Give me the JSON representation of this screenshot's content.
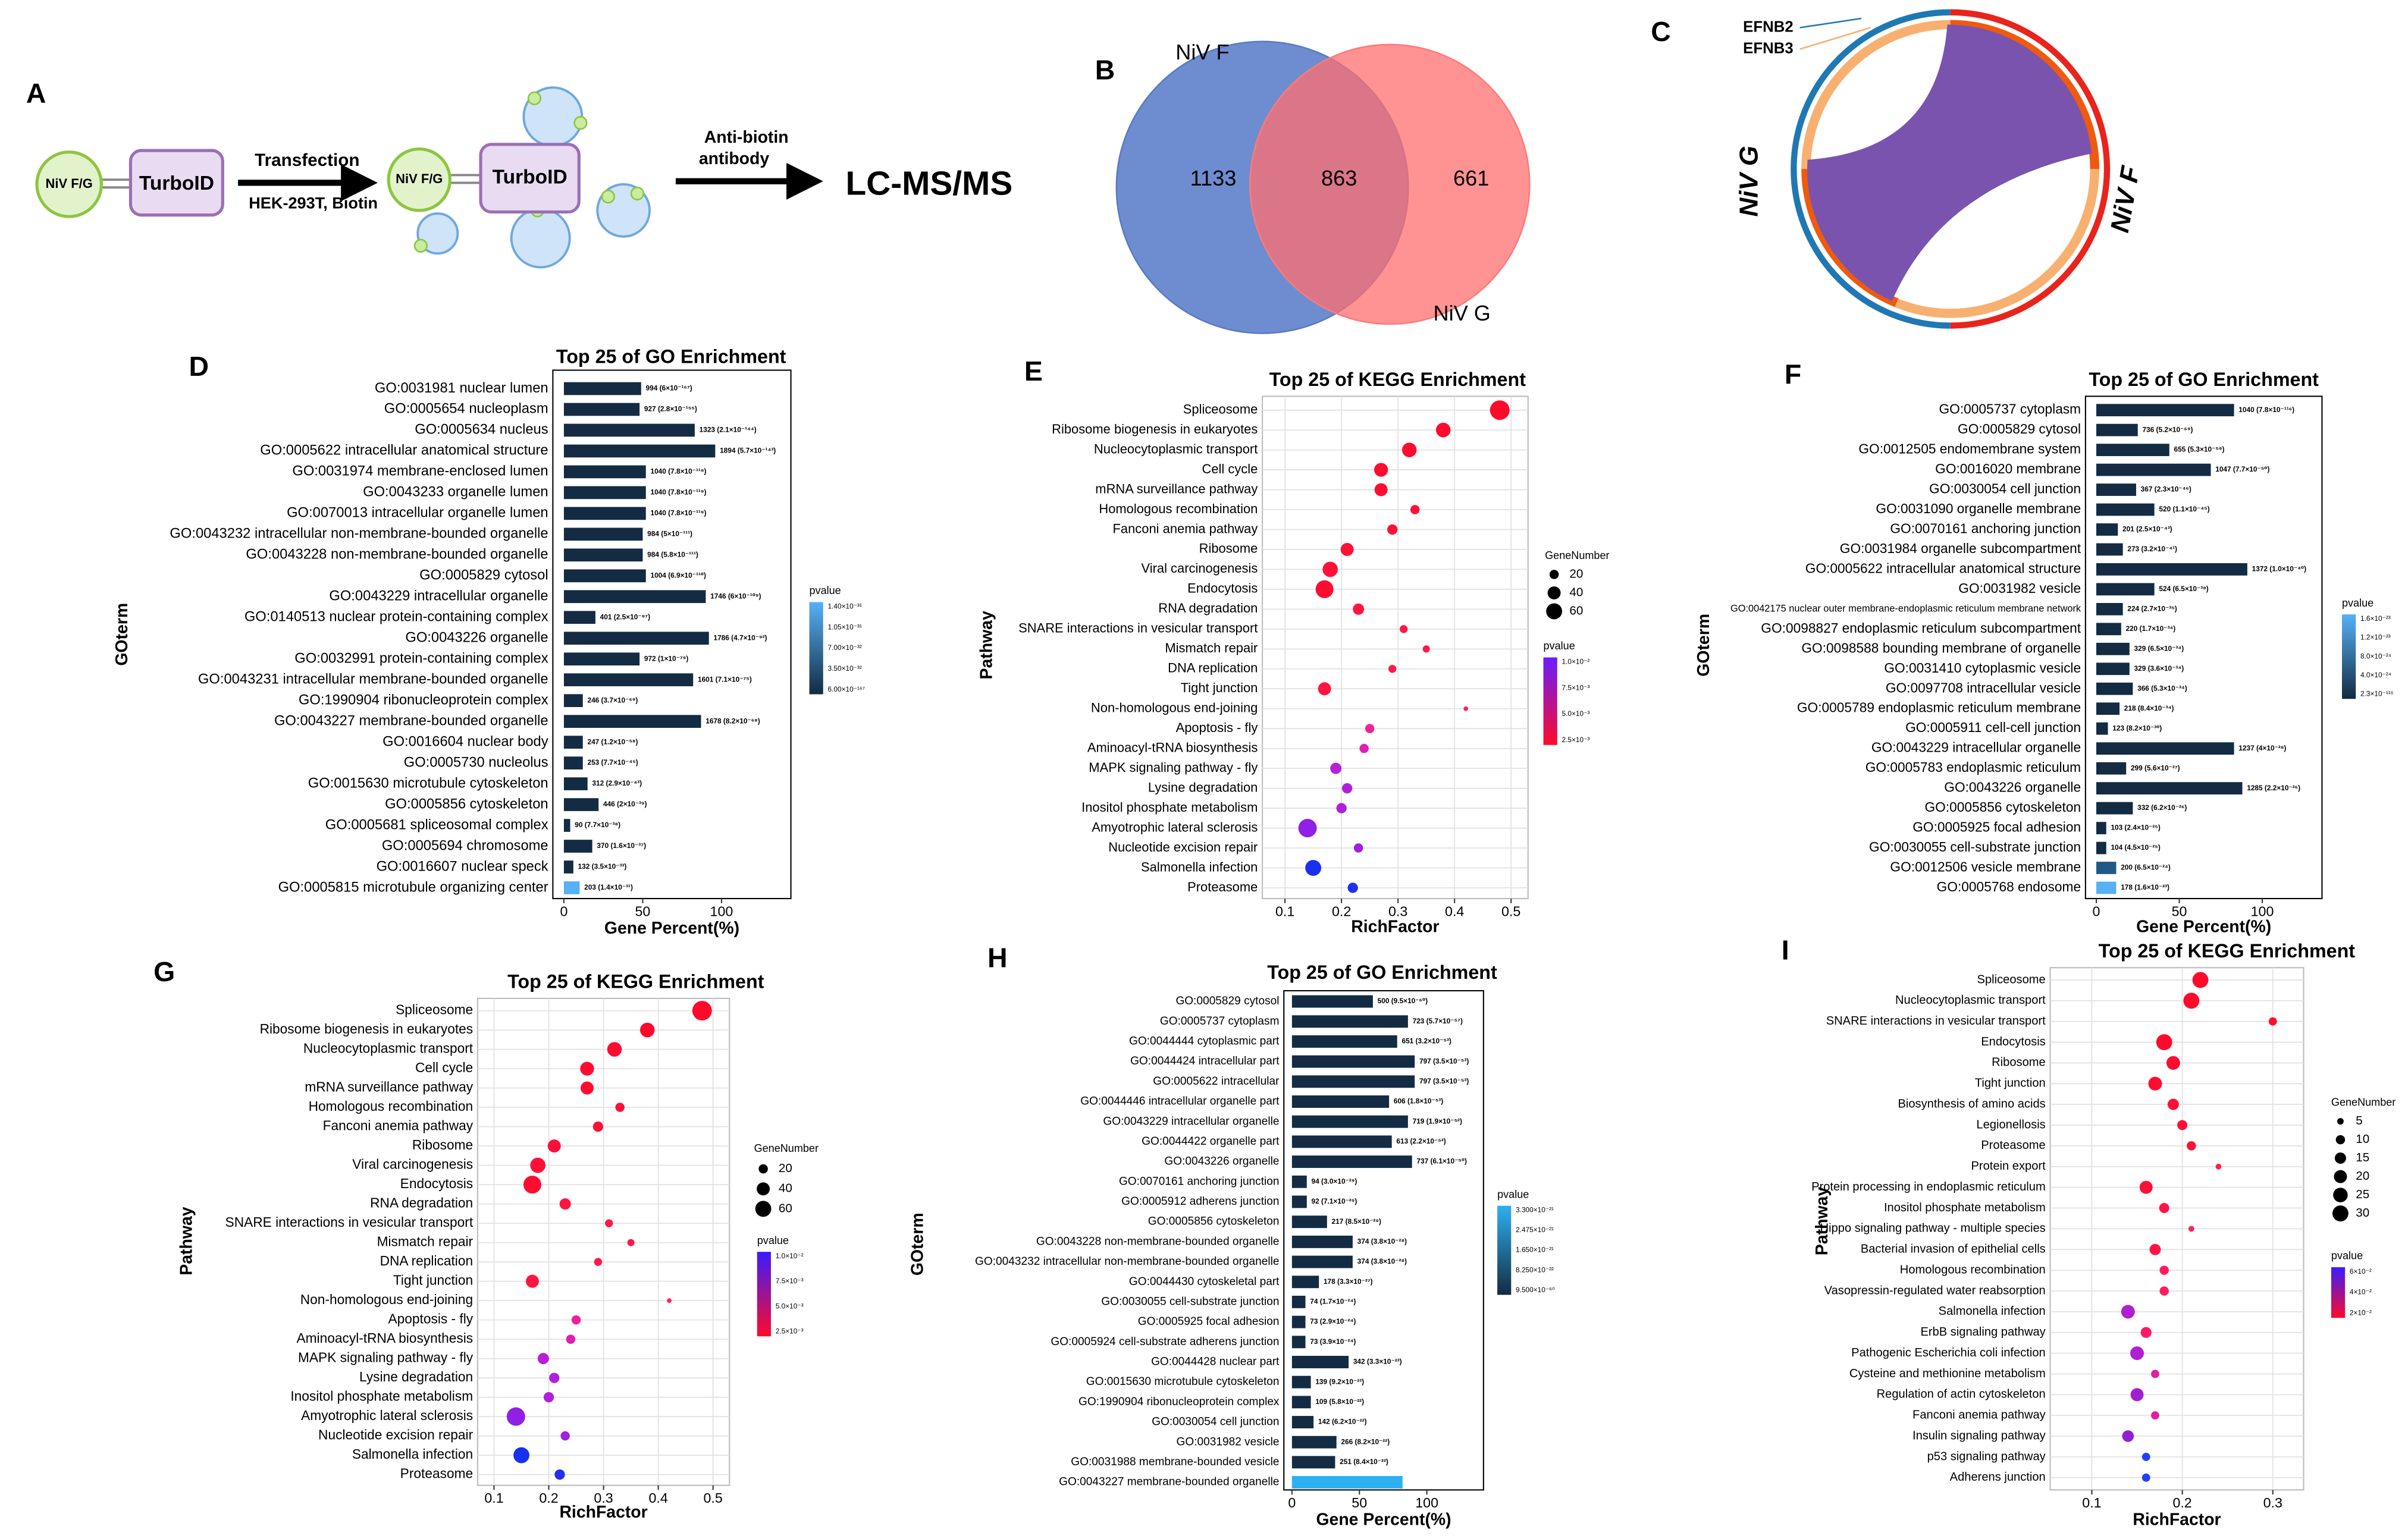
{
  "workflow": {
    "panel": "A",
    "bait1": "NiV F/G",
    "tag1": "TurboID",
    "step1": "Transfection",
    "step1_detail": "HEK-293T, Biotin",
    "bait2": "NiV F/G",
    "tag2": "TurboID",
    "step2_line1": "Anti-biotin",
    "step2_line2": "antibody",
    "result": "LC-MS/MS"
  },
  "venn": {
    "panel": "B",
    "set1": "NiV F",
    "set2": "NiV G",
    "only1": "1133",
    "both": "863",
    "only2": "661"
  },
  "chord": {
    "panel": "C",
    "label1": "EFNB2",
    "label2": "EFNB3",
    "left": "NiV G",
    "right": "NiV F"
  },
  "chart_data": [
    {
      "type": "bar",
      "panel": "D",
      "title": "Top 25 of GO Enrichment",
      "xlabel": "Gene Percent(%)",
      "ylabel": "GOterm",
      "categories": [
        "GO:0031981 nuclear lumen",
        "GO:0005654 nucleoplasm",
        "GO:0005634 nucleus",
        "GO:0005622 intracellular anatomical structure",
        "GO:0031974 membrane-enclosed lumen",
        "GO:0043233 organelle lumen",
        "GO:0070013 intracellular organelle lumen",
        "GO:0043232 intracellular non-membrane-bounded organelle",
        "GO:0043228 non-membrane-bounded organelle",
        "GO:0005829 cytosol",
        "GO:0043229 intracellular organelle",
        "GO:0140513 nuclear protein-containing complex",
        "GO:0043226 organelle",
        "GO:0032991 protein-containing complex",
        "GO:0043231 intracellular membrane-bounded organelle",
        "GO:1990904 ribonucleoprotein complex",
        "GO:0043227 membrane-bounded organelle",
        "GO:0016604 nuclear body",
        "GO:0005730 nucleolus",
        "GO:0015630 microtubule cytoskeleton",
        "GO:0005856 cytoskeleton",
        "GO:0005681 spliceosomal complex",
        "GO:0005694 chromosome",
        "GO:0016607 nuclear speck",
        "GO:0005815 microtubule organizing center"
      ],
      "values": [
        49,
        48,
        83,
        96,
        52,
        52,
        52,
        50,
        50,
        52,
        90,
        20,
        92,
        48,
        82,
        12,
        87,
        12,
        12,
        15,
        22,
        4,
        18,
        6,
        10
      ],
      "bar_labels": [
        "994 (6×10⁻¹⁶⁷)",
        "927 (2.8×10⁻¹⁵⁵)",
        "1323 (2.1×10⁻¹⁴⁴)",
        "1894 (5.7×10⁻¹⁴³)",
        "1040 (7.8×10⁻¹¹⁹)",
        "1040 (7.8×10⁻¹¹⁹)",
        "1040 (7.8×10⁻¹¹⁹)",
        "984 (5×10⁻¹¹¹)",
        "984 (5.8×10⁻¹¹¹)",
        "1004 (6.9×10⁻¹¹⁰)",
        "1746 (6×10⁻¹⁰⁹)",
        "401 (2.5×10⁻⁹⁷)",
        "1786 (4.7×10⁻⁹²)",
        "972 (1×10⁻⁷⁹)",
        "1601 (7.1×10⁻⁷⁵)",
        "246 (3.7×10⁻⁶⁹)",
        "1678 (8.2×10⁻⁶⁸)",
        "247 (1.2×10⁻⁵⁸)",
        "253 (7.7×10⁻⁴⁵)",
        "312 (2.9×10⁻⁴³)",
        "446 (2×10⁻³⁹)",
        "90 (7.7×10⁻³⁸)",
        "370 (1.6×10⁻³⁷)",
        "132 (3.5×10⁻³³)",
        "203 (1.4×10⁻³¹)"
      ],
      "colors": [
        "#132b43",
        "#132b43",
        "#132b43",
        "#132b43",
        "#132b43",
        "#132b43",
        "#132b43",
        "#132b43",
        "#132b43",
        "#132b43",
        "#132b43",
        "#132b43",
        "#132b43",
        "#132b43",
        "#132b43",
        "#132b43",
        "#132b43",
        "#132b43",
        "#132b43",
        "#132b43",
        "#132b43",
        "#132b43",
        "#132b43",
        "#132b43",
        "#56b1f7"
      ],
      "xlim": [
        -7,
        144
      ],
      "xticks": [
        0,
        50,
        100
      ],
      "colorbar": {
        "title": "pvalue",
        "labels": [
          "1.40×10⁻³¹",
          "1.05×10⁻³¹",
          "7.00×10⁻³²",
          "3.50×10⁻³²",
          "6.00×10⁻¹⁶⁷"
        ],
        "colors": [
          "#56b1f7",
          "#132b43"
        ]
      }
    },
    {
      "type": "bubble",
      "panel": "E",
      "title": "Top 25 of KEGG Enrichment",
      "xlabel": "RichFactor",
      "ylabel": "Pathway",
      "grid": true,
      "categories": [
        "Spliceosome",
        "Ribosome biogenesis in eukaryotes",
        "Nucleocytoplasmic transport",
        "Cell cycle",
        "mRNA surveillance pathway",
        "Homologous recombination",
        "Fanconi anemia pathway",
        "Ribosome",
        "Viral carcinogenesis",
        "Endocytosis",
        "RNA degradation",
        "SNARE interactions in vesicular transport",
        "Mismatch repair",
        "DNA replication",
        "Tight junction",
        "Non-homologous end-joining",
        "Apoptosis - fly",
        "Aminoacyl-tRNA biosynthesis",
        "MAPK signaling pathway - fly",
        "Lysine degradation",
        "Inositol phosphate metabolism",
        "Amyotrophic lateral sclerosis",
        "Nucleotide excision repair",
        "Salmonella infection",
        "Proteasome"
      ],
      "x": [
        0.48,
        0.38,
        0.32,
        0.27,
        0.27,
        0.33,
        0.29,
        0.21,
        0.18,
        0.17,
        0.23,
        0.31,
        0.35,
        0.29,
        0.17,
        0.42,
        0.25,
        0.24,
        0.19,
        0.21,
        0.2,
        0.14,
        0.23,
        0.15,
        0.22
      ],
      "sizes": [
        90,
        50,
        50,
        45,
        40,
        20,
        25,
        40,
        55,
        75,
        30,
        15,
        12,
        15,
        40,
        5,
        20,
        20,
        30,
        25,
        25,
        80,
        20,
        60,
        25
      ],
      "colors": [
        "#ff0a2a",
        "#ff0a2c",
        "#ff0c30",
        "#ff0c30",
        "#ff0c30",
        "#ff1038",
        "#ff1038",
        "#ff1038",
        "#ff1038",
        "#ff0c30",
        "#ff1640",
        "#ff1848",
        "#ff1848",
        "#ff1848",
        "#ff1640",
        "#ff2060",
        "#f0209a",
        "#e020b0",
        "#b820d8",
        "#b020dc",
        "#b020dc",
        "#9020e4",
        "#a020e0",
        "#1830f0",
        "#2030f0"
      ],
      "xlim": [
        0.06,
        0.53
      ],
      "xticks": [
        0.1,
        0.2,
        0.3,
        0.4,
        0.5
      ],
      "size_legend": {
        "title": "GeneNumber",
        "values": [
          20,
          40,
          60
        ]
      },
      "colorbar": {
        "title": "pvalue",
        "labels": [
          "1.0×10⁻²",
          "7.5×10⁻³",
          "5.0×10⁻³",
          "2.5×10⁻³"
        ],
        "colors": [
          "#6a1cff",
          "#ff0a2a"
        ]
      }
    },
    {
      "type": "bar",
      "panel": "F",
      "title": "Top 25 of GO Enrichment",
      "xlabel": "Gene Percent(%)",
      "ylabel": "GOterm",
      "categories": [
        "GO:0005737 cytoplasm",
        "GO:0005829 cytosol",
        "GO:0012505 endomembrane system",
        "GO:0016020 membrane",
        "GO:0030054 cell junction",
        "GO:0031090 organelle membrane",
        "GO:0070161 anchoring junction",
        "GO:0031984 organelle subcompartment",
        "GO:0005622 intracellular anatomical structure",
        "GO:0031982 vesicle",
        "GO:0042175 nuclear outer membrane-endoplasmic reticulum membrane network",
        "GO:0098827 endoplasmic reticulum subcompartment",
        "GO:0098588 bounding membrane of organelle",
        "GO:0031410 cytoplasmic vesicle",
        "GO:0097708 intracellular vesicle",
        "GO:0005789 endoplasmic reticulum membrane",
        "GO:0005911 cell-cell junction",
        "GO:0043229 intracellular organelle",
        "GO:0005783 endoplasmic reticulum",
        "GO:0043226 organelle",
        "GO:0005856 cytoskeleton",
        "GO:0005925 focal adhesion",
        "GO:0030055 cell-substrate junction",
        "GO:0012506 vesicle membrane",
        "GO:0005768 endosome"
      ],
      "values": [
        83,
        25,
        44,
        69,
        24,
        35,
        13,
        16,
        91,
        35,
        16,
        15,
        20,
        20,
        22,
        14,
        7,
        83,
        18,
        88,
        22,
        6,
        6,
        12,
        12
      ],
      "bar_labels": [
        "1040 (7.8×10⁻¹¹⁶)",
        "736 (5.2×10⁻⁶⁹)",
        "655 (5.3×10⁻⁵⁹)",
        "1047 (7.7×10⁻⁵⁰)",
        "367 (2.3×10⁻⁴⁶)",
        "520 (1.1×10⁻⁴⁵)",
        "201 (2.5×10⁻⁴³)",
        "273 (3.2×10⁻⁴¹)",
        "1372 (1.0×10⁻⁴⁰)",
        "524 (6.5×10⁻³⁸)",
        "224 (2.7×10⁻³⁵)",
        "220 (1.7×10⁻³⁴)",
        "329 (6.5×10⁻³⁴)",
        "329 (3.6×10⁻³⁴)",
        "366 (5.3×10⁻³⁴)",
        "218 (8.4×10⁻³⁴)",
        "123 (8.2×10⁻³⁰)",
        "1237 (4×10⁻²⁸)",
        "299 (5.6×10⁻²⁷)",
        "1285 (2.2×10⁻²⁶)",
        "332 (6.2×10⁻²⁶)",
        "103 (2.4×10⁻²⁵)",
        "104 (4.5×10⁻²⁵)",
        "200 (6.5×10⁻²⁴)",
        "178 (1.6×10⁻²³)"
      ],
      "colors": [
        "#132b43",
        "#132b43",
        "#132b43",
        "#132b43",
        "#132b43",
        "#132b43",
        "#132b43",
        "#132b43",
        "#132b43",
        "#132b43",
        "#132b43",
        "#132b43",
        "#132b43",
        "#132b43",
        "#132b43",
        "#132b43",
        "#132b43",
        "#132b43",
        "#132b43",
        "#132b43",
        "#132b43",
        "#132b43",
        "#132b43",
        "#1f5a86",
        "#56b1f7"
      ],
      "xlim": [
        -6.5,
        136
      ],
      "xticks": [
        0,
        50,
        100
      ],
      "colorbar": {
        "title": "pvalue",
        "labels": [
          "1.6×10⁻²³",
          "1.2×10⁻²³",
          "8.0×10⁻²⁴",
          "4.0×10⁻²⁴",
          "2.3×10⁻¹¹⁶"
        ],
        "colors": [
          "#56b1f7",
          "#132b43"
        ]
      }
    },
    {
      "type": "bubble",
      "panel": "G",
      "title": "Top 25 of KEGG Enrichment",
      "xlabel": "RichFactor",
      "ylabel": "Pathway",
      "grid": true,
      "categories": [
        "Spliceosome",
        "Ribosome biogenesis in eukaryotes",
        "Nucleocytoplasmic transport",
        "Cell cycle",
        "mRNA surveillance pathway",
        "Homologous recombination",
        "Fanconi anemia pathway",
        "Ribosome",
        "Viral carcinogenesis",
        "Endocytosis",
        "RNA degradation",
        "SNARE interactions in vesicular transport",
        "Mismatch repair",
        "DNA replication",
        "Tight junction",
        "Non-homologous end-joining",
        "Apoptosis - fly",
        "Aminoacyl-tRNA biosynthesis",
        "MAPK signaling pathway - fly",
        "Lysine degradation",
        "Inositol phosphate metabolism",
        "Amyotrophic lateral sclerosis",
        "Nucleotide excision repair",
        "Salmonella infection",
        "Proteasome"
      ],
      "x": [
        0.48,
        0.38,
        0.32,
        0.27,
        0.27,
        0.33,
        0.29,
        0.21,
        0.18,
        0.17,
        0.23,
        0.31,
        0.35,
        0.29,
        0.17,
        0.42,
        0.25,
        0.24,
        0.19,
        0.21,
        0.2,
        0.14,
        0.23,
        0.15,
        0.22
      ],
      "sizes": [
        90,
        50,
        50,
        45,
        40,
        20,
        25,
        40,
        55,
        75,
        30,
        15,
        12,
        15,
        40,
        5,
        20,
        20,
        30,
        25,
        25,
        80,
        20,
        60,
        25
      ],
      "colors": [
        "#ff0a2a",
        "#ff0a2c",
        "#ff0c30",
        "#ff0c30",
        "#ff0c30",
        "#ff1038",
        "#ff1038",
        "#ff1038",
        "#ff1038",
        "#ff0c30",
        "#ff1640",
        "#ff1848",
        "#ff1848",
        "#ff1848",
        "#ff1640",
        "#ff2060",
        "#f0209a",
        "#e020b0",
        "#b820d8",
        "#b020dc",
        "#b020dc",
        "#9020e4",
        "#a020e0",
        "#1830f0",
        "#2030f0"
      ],
      "xlim": [
        0.07,
        0.53
      ],
      "xticks": [
        0.1,
        0.2,
        0.3,
        0.4,
        0.5
      ],
      "size_legend": {
        "title": "GeneNumber",
        "values": [
          20,
          40,
          60
        ]
      },
      "colorbar": {
        "title": "pvalue",
        "labels": [
          "1.0×10⁻²",
          "7.5×10⁻³",
          "5.0×10⁻³",
          "2.5×10⁻³"
        ],
        "colors": [
          "#3a1cff",
          "#ff0a2a"
        ]
      }
    },
    {
      "type": "bar",
      "panel": "H",
      "title": "Top 25 of GO Enrichment",
      "xlabel": "Gene Percent(%)",
      "ylabel": "GOterm",
      "categories": [
        "GO:0005829 cytosol",
        "GO:0005737 cytoplasm",
        "GO:0044444 cytoplasmic part",
        "GO:0044424 intracellular part",
        "GO:0005622 intracellular",
        "GO:0044446 intracellular organelle part",
        "GO:0043229 intracellular organelle",
        "GO:0044422 organelle part",
        "GO:0043226 organelle",
        "GO:0070161 anchoring junction",
        "GO:0005912 adherens junction",
        "GO:0005856 cytoskeleton",
        "GO:0043228 non-membrane-bounded organelle",
        "GO:0043232 intracellular non-membrane-bounded organelle",
        "GO:0044430 cytoskeletal part",
        "GO:0030055 cell-substrate junction",
        "GO:0005925 focal adhesion",
        "GO:0005924 cell-substrate adherens junction",
        "GO:0044428 nuclear part",
        "GO:0015630 microtubule cytoskeleton",
        "GO:1990904 ribonucleoprotein complex",
        "GO:0030054 cell junction",
        "GO:0031982 vesicle",
        "GO:0031988 membrane-bounded vesicle",
        "GO:0043227 membrane-bounded organelle"
      ],
      "values": [
        60,
        86,
        78,
        91,
        91,
        72,
        86,
        74,
        89,
        11,
        11,
        26,
        45,
        45,
        20,
        10,
        10,
        10,
        42,
        14,
        14,
        16,
        33,
        32,
        82
      ],
      "bar_labels": [
        "500 (9.5×10⁻⁶⁰)",
        "723 (5.7×10⁻⁵⁷)",
        "651 (3.2×10⁻⁵³)",
        "797 (3.5×10⁻⁵³)",
        "797 (3.5×10⁻⁵³)",
        "606 (1.8×10⁻⁵³)",
        "719 (1.9×10⁻⁵²)",
        "613 (2.2×10⁻⁵²)",
        "737 (6.1×10⁻⁵⁰)",
        "94 (3.0×10⁻²⁹)",
        "92 (7.1×10⁻²⁹)",
        "217 (8.5×10⁻²⁹)",
        "374 (3.8×10⁻²⁸)",
        "374 (3.8×10⁻²⁸)",
        "178 (3.3×10⁻²⁷)",
        "74 (1.7×10⁻²⁴)",
        "73 (2.9×10⁻²⁴)",
        "73 (3.9×10⁻²⁴)",
        "342 (3.3×10⁻²³)",
        "139 (9.2×10⁻²³)",
        "109 (5.8×10⁻²²)",
        "142 (6.2×10⁻²²)",
        "266 (8.2×10⁻²²)",
        "251 (8.4×10⁻²²)",
        null
      ],
      "colors": [
        "#132b43",
        "#132b43",
        "#132b43",
        "#132b43",
        "#132b43",
        "#132b43",
        "#132b43",
        "#132b43",
        "#132b43",
        "#132b43",
        "#132b43",
        "#132b43",
        "#132b43",
        "#132b43",
        "#132b43",
        "#132b43",
        "#132b43",
        "#132b43",
        "#132b43",
        "#132b43",
        "#132b43",
        "#132b43",
        "#132b43",
        "#132b43",
        "#2db0f0"
      ],
      "xlim": [
        -6,
        142
      ],
      "xticks": [
        0,
        50,
        100
      ],
      "colorbar": {
        "title": "pvalue",
        "labels": [
          "3.300×10⁻²¹",
          "2.475×10⁻²¹",
          "1.650×10⁻²¹",
          "8.250×10⁻²²",
          "9.500×10⁻⁶⁰"
        ],
        "colors": [
          "#2db0f0",
          "#132b43"
        ]
      }
    },
    {
      "type": "bubble",
      "panel": "I",
      "title": "Top 25 of KEGG Enrichment",
      "xlabel": "RichFactor",
      "ylabel": "Pathway",
      "grid": true,
      "categories": [
        "Spliceosome",
        "Nucleocytoplasmic transport",
        "SNARE interactions in vesicular transport",
        "Endocytosis",
        "Ribosome",
        "Tight junction",
        "Biosynthesis of amino acids",
        "Legionellosis",
        "Proteasome",
        "Protein export",
        "Protein processing in endoplasmic reticulum",
        "Inositol phosphate metabolism",
        "Hippo signaling pathway - multiple species",
        "Bacterial invasion of epithelial cells",
        "Homologous recombination",
        "Vasopressin-regulated water reabsorption",
        "Salmonella infection",
        "ErbB signaling pathway",
        "Pathogenic Escherichia coli infection",
        "Cysteine and methionine metabolism",
        "Regulation of actin cytoskeleton",
        "Fanconi anemia pathway",
        "Insulin signaling pathway",
        "p53 signaling pathway",
        "Adherens junction"
      ],
      "x": [
        0.22,
        0.21,
        0.3,
        0.18,
        0.19,
        0.17,
        0.19,
        0.2,
        0.21,
        0.24,
        0.16,
        0.18,
        0.21,
        0.17,
        0.18,
        0.18,
        0.14,
        0.16,
        0.15,
        0.17,
        0.15,
        0.17,
        0.14,
        0.16,
        0.16
      ],
      "sizes": [
        30,
        30,
        8,
        30,
        22,
        22,
        15,
        12,
        10,
        4,
        20,
        12,
        4,
        15,
        10,
        10,
        22,
        14,
        22,
        8,
        20,
        8,
        16,
        8,
        8
      ],
      "colors": [
        "#ff0a2a",
        "#ff0a2a",
        "#ff1030",
        "#ff0a2a",
        "#ff0c30",
        "#ff0c30",
        "#ff1038",
        "#ff1038",
        "#ff1038",
        "#ff2048",
        "#ff1038",
        "#ff1448",
        "#ff2060",
        "#ff1448",
        "#ff1c60",
        "#ff1c60",
        "#b020d0",
        "#ff1868",
        "#b020d0",
        "#e020a0",
        "#a020d0",
        "#e020a0",
        "#9020d8",
        "#2040ff",
        "#2040ff"
      ],
      "xlim": [
        0.054,
        0.334
      ],
      "xticks": [
        0.1,
        0.2,
        0.3
      ],
      "size_legend": {
        "title": "GeneNumber",
        "values": [
          5,
          10,
          15,
          20,
          25,
          30
        ]
      },
      "colorbar": {
        "title": "pvalue",
        "labels": [
          "6×10⁻²",
          "4×10⁻²",
          "2×10⁻²"
        ],
        "colors": [
          "#3a1cff",
          "#ff0a2a"
        ]
      }
    }
  ]
}
